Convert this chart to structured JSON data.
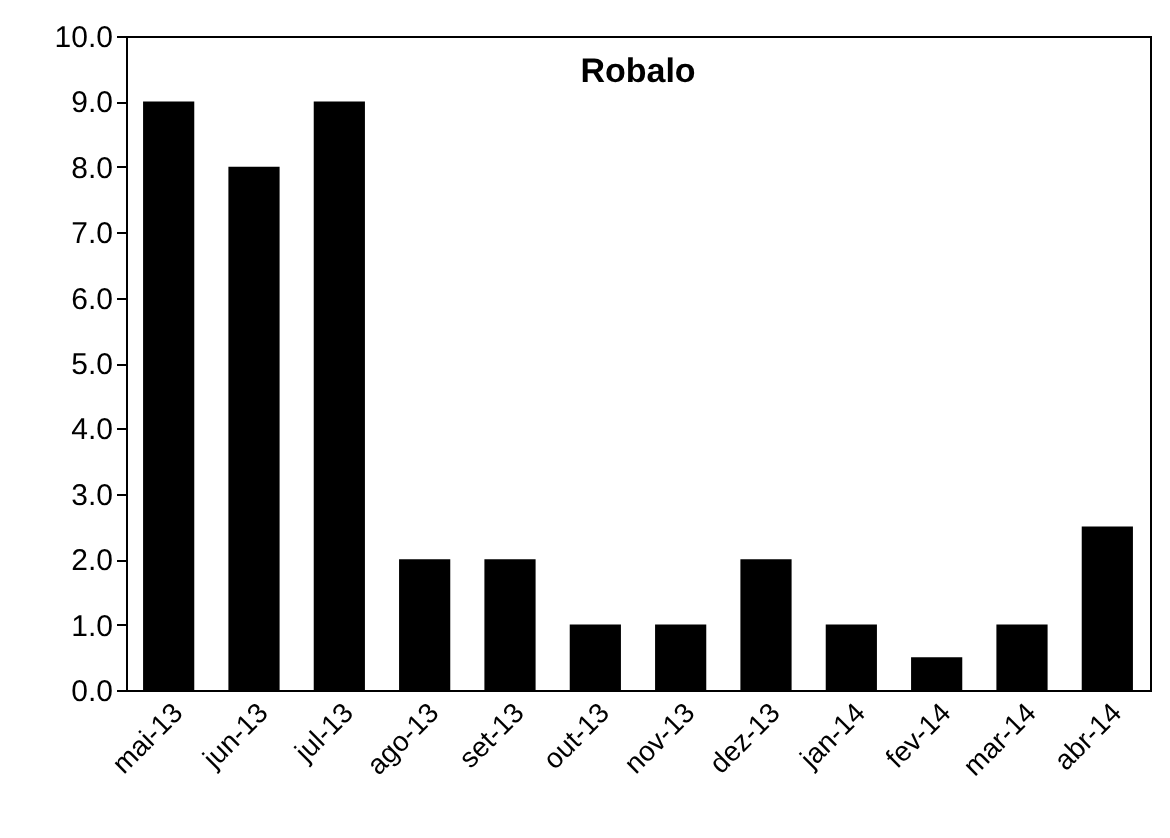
{
  "chart_data": {
    "type": "bar",
    "title": "Robalo",
    "categories": [
      "mai-13",
      "jun-13",
      "jul-13",
      "ago-13",
      "set-13",
      "out-13",
      "nov-13",
      "dez-13",
      "jan-14",
      "fev-14",
      "mar-14",
      "abr-14"
    ],
    "values": [
      9,
      8,
      9,
      2,
      2,
      1,
      1,
      2,
      1,
      0.5,
      1,
      2.5
    ],
    "color": "#000000",
    "ylim": [
      0,
      10
    ],
    "yticks": [
      {
        "value": 0,
        "label": "0.0"
      },
      {
        "value": 1,
        "label": "1.0"
      },
      {
        "value": 2,
        "label": "2.0"
      },
      {
        "value": 3,
        "label": "3.0"
      },
      {
        "value": 4,
        "label": "4.0"
      },
      {
        "value": 5,
        "label": "5.0"
      },
      {
        "value": 6,
        "label": "6.0"
      },
      {
        "value": 7,
        "label": "7.0"
      },
      {
        "value": 8,
        "label": "8.0"
      },
      {
        "value": 9,
        "label": "9.0"
      },
      {
        "value": 10,
        "label": "10.0"
      }
    ],
    "grid": false
  }
}
